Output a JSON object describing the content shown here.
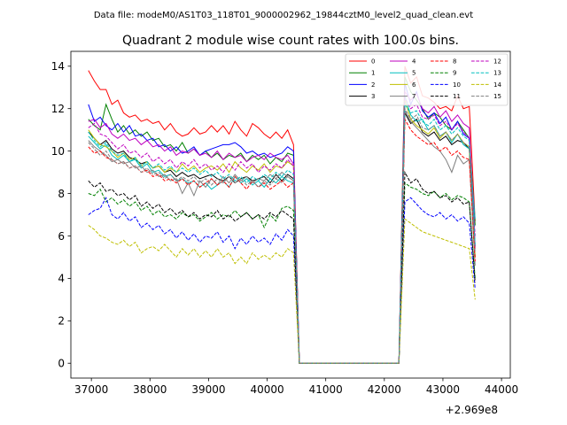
{
  "chart_data": {
    "type": "line",
    "suptitle": "Data file: modeM0/AS1T03_118T01_9000002962_19844cztM0_level2_quad_clean.evt",
    "title": "Quadrant 2 module wise count rates with 100.0s bins.",
    "xlabel": "",
    "ylabel": "",
    "x_offset_label": "+2.969e8",
    "xlim": [
      36650,
      44150
    ],
    "ylim": [
      -0.7,
      14.7
    ],
    "xticks": [
      37000,
      38000,
      39000,
      40000,
      41000,
      42000,
      43000,
      44000
    ],
    "xtick_labels": [
      "37000",
      "38000",
      "39000",
      "40000",
      "41000",
      "42000",
      "43000",
      "44000"
    ],
    "yticks": [
      0,
      2,
      4,
      6,
      8,
      10,
      12,
      14
    ],
    "ytick_labels": [
      "0",
      "2",
      "4",
      "6",
      "8",
      "10",
      "12",
      "14"
    ],
    "x_start": 36950,
    "x_step": 100,
    "legend_position": "top-right",
    "series": [
      {
        "name": "0",
        "color": "#ff0000",
        "dash": "solid",
        "values": [
          13.8,
          13.3,
          12.9,
          12.9,
          12.2,
          12.4,
          11.8,
          11.6,
          11.7,
          11.4,
          11.5,
          11.3,
          11.4,
          11.0,
          11.3,
          10.9,
          10.7,
          10.8,
          11.1,
          10.8,
          10.9,
          11.2,
          10.9,
          11.2,
          10.8,
          11.4,
          11.0,
          10.7,
          11.3,
          11.1,
          10.8,
          10.6,
          10.9,
          10.6,
          11.0,
          10.3,
          0,
          0,
          0,
          0,
          0,
          0,
          0,
          0,
          0,
          0,
          0,
          0,
          0,
          0,
          0,
          0,
          0,
          0,
          14.0,
          13.2,
          13.5,
          12.6,
          12.5,
          12.3,
          12.0,
          12.1,
          11.9,
          12.6,
          12.0,
          12.1,
          6.7
        ]
      },
      {
        "name": "1",
        "color": "#008000",
        "dash": "solid",
        "values": [
          11.5,
          11.2,
          11.0,
          12.2,
          11.5,
          10.9,
          11.2,
          10.8,
          11.0,
          10.7,
          10.9,
          10.5,
          10.6,
          10.2,
          10.3,
          10.0,
          10.4,
          9.9,
          10.1,
          9.8,
          10.0,
          9.7,
          9.9,
          9.6,
          9.8,
          9.7,
          9.9,
          9.5,
          9.8,
          9.6,
          9.8,
          9.4,
          9.7,
          9.5,
          9.9,
          9.8,
          0,
          0,
          0,
          0,
          0,
          0,
          0,
          0,
          0,
          0,
          0,
          0,
          0,
          0,
          0,
          0,
          0,
          0,
          13.5,
          12.8,
          12.4,
          12.0,
          11.5,
          11.8,
          11.6,
          11.2,
          11.0,
          11.4,
          11.0,
          10.6,
          6.5
        ]
      },
      {
        "name": "2",
        "color": "#0000ff",
        "dash": "solid",
        "values": [
          12.2,
          11.4,
          11.6,
          11.2,
          11.0,
          11.3,
          10.9,
          11.2,
          10.7,
          10.8,
          10.5,
          10.6,
          10.2,
          10.3,
          10.0,
          10.2,
          9.9,
          10.0,
          10.2,
          9.8,
          10.0,
          10.1,
          10.2,
          10.3,
          10.3,
          10.4,
          10.2,
          9.9,
          10.0,
          9.8,
          9.9,
          9.7,
          9.8,
          9.9,
          10.2,
          10.0,
          0,
          0,
          0,
          0,
          0,
          0,
          0,
          0,
          0,
          0,
          0,
          0,
          0,
          0,
          0,
          0,
          0,
          0,
          13.2,
          12.2,
          12.8,
          11.9,
          11.6,
          11.8,
          11.3,
          11.6,
          11.0,
          11.4,
          10.8,
          10.6,
          5.5
        ]
      },
      {
        "name": "3",
        "color": "#000000",
        "dash": "solid",
        "values": [
          10.9,
          10.6,
          10.3,
          10.5,
          10.1,
          9.9,
          10.0,
          9.7,
          9.6,
          9.4,
          9.5,
          9.2,
          9.3,
          9.0,
          9.1,
          8.8,
          9.0,
          8.8,
          8.9,
          8.7,
          8.8,
          8.9,
          8.7,
          8.6,
          8.8,
          8.5,
          8.7,
          8.8,
          8.6,
          8.7,
          8.8,
          8.5,
          8.9,
          8.6,
          8.9,
          8.7,
          0,
          0,
          0,
          0,
          0,
          0,
          0,
          0,
          0,
          0,
          0,
          0,
          0,
          0,
          0,
          0,
          0,
          0,
          11.8,
          11.3,
          11.5,
          10.9,
          10.7,
          10.9,
          10.5,
          10.7,
          10.3,
          10.5,
          10.4,
          10.1,
          5.0
        ]
      },
      {
        "name": "4",
        "color": "#bf00bf",
        "dash": "solid",
        "values": [
          11.4,
          11.5,
          11.1,
          11.3,
          10.8,
          10.6,
          10.8,
          10.5,
          10.6,
          10.3,
          10.5,
          10.2,
          10.3,
          10.0,
          10.2,
          9.8,
          10.0,
          9.9,
          10.1,
          9.8,
          9.9,
          9.7,
          10.0,
          9.6,
          9.9,
          9.7,
          9.8,
          9.5,
          9.7,
          9.8,
          9.6,
          9.9,
          9.7,
          9.6,
          9.8,
          9.4,
          0,
          0,
          0,
          0,
          0,
          0,
          0,
          0,
          0,
          0,
          0,
          0,
          0,
          0,
          0,
          0,
          0,
          0,
          12.8,
          12.4,
          12.7,
          12.0,
          11.8,
          12.1,
          11.6,
          11.9,
          11.4,
          11.7,
          11.3,
          11.1,
          5.4
        ]
      },
      {
        "name": "5",
        "color": "#00bfbf",
        "dash": "solid",
        "values": [
          10.7,
          10.4,
          10.1,
          10.3,
          9.8,
          9.6,
          9.8,
          9.5,
          9.6,
          9.2,
          9.4,
          9.0,
          9.1,
          8.8,
          8.9,
          8.6,
          8.7,
          8.5,
          8.6,
          8.3,
          8.5,
          8.2,
          8.4,
          8.6,
          8.3,
          8.8,
          8.5,
          8.7,
          8.4,
          8.6,
          8.3,
          8.7,
          8.5,
          8.8,
          8.6,
          8.5,
          0,
          0,
          0,
          0,
          0,
          0,
          0,
          0,
          0,
          0,
          0,
          0,
          0,
          0,
          0,
          0,
          0,
          0,
          12.6,
          11.7,
          11.4,
          11.5,
          11.0,
          11.2,
          10.7,
          10.9,
          10.4,
          10.8,
          10.3,
          10.1,
          6.8
        ]
      },
      {
        "name": "6",
        "color": "#bfbf00",
        "dash": "solid",
        "values": [
          11.0,
          10.6,
          10.3,
          10.2,
          10.0,
          9.7,
          9.9,
          9.6,
          9.7,
          9.3,
          9.5,
          9.2,
          9.3,
          9.0,
          9.2,
          9.0,
          9.4,
          9.1,
          9.3,
          9.0,
          9.2,
          9.3,
          9.1,
          9.4,
          9.0,
          9.5,
          9.2,
          9.0,
          9.3,
          9.1,
          9.4,
          9.0,
          9.3,
          9.2,
          9.5,
          9.3,
          0,
          0,
          0,
          0,
          0,
          0,
          0,
          0,
          0,
          0,
          0,
          0,
          0,
          0,
          0,
          0,
          0,
          0,
          12.4,
          11.5,
          11.2,
          11.0,
          10.8,
          11.1,
          10.6,
          10.9,
          10.5,
          10.8,
          10.4,
          10.2,
          5.0
        ]
      },
      {
        "name": "7",
        "color": "#7f7f7f",
        "dash": "solid",
        "values": [
          10.5,
          10.2,
          10.0,
          9.8,
          9.5,
          9.6,
          9.4,
          9.5,
          9.2,
          9.3,
          9.0,
          9.1,
          8.8,
          8.9,
          8.6,
          8.7,
          8.0,
          8.5,
          7.9,
          8.6,
          8.3,
          8.7,
          8.4,
          8.8,
          8.5,
          8.9,
          8.6,
          8.8,
          8.5,
          8.7,
          8.6,
          8.9,
          8.7,
          9.0,
          8.8,
          8.6,
          0,
          0,
          0,
          0,
          0,
          0,
          0,
          0,
          0,
          0,
          0,
          0,
          0,
          0,
          0,
          0,
          0,
          0,
          11.9,
          11.4,
          11.1,
          10.8,
          10.5,
          10.2,
          10.0,
          9.6,
          9.0,
          9.8,
          9.4,
          9.6,
          4.6
        ]
      },
      {
        "name": "8",
        "color": "#ff0000",
        "dash": "dashed",
        "values": [
          10.2,
          9.9,
          10.0,
          9.7,
          9.6,
          9.4,
          9.5,
          9.2,
          9.3,
          9.0,
          9.1,
          8.8,
          8.9,
          8.6,
          8.7,
          8.5,
          8.7,
          8.4,
          8.6,
          8.3,
          8.5,
          8.7,
          8.4,
          8.6,
          8.3,
          8.8,
          8.5,
          8.2,
          8.6,
          8.3,
          8.5,
          8.2,
          8.4,
          8.6,
          8.3,
          8.5,
          0,
          0,
          0,
          0,
          0,
          0,
          0,
          0,
          0,
          0,
          0,
          0,
          0,
          0,
          0,
          0,
          0,
          0,
          11.5,
          11.0,
          10.7,
          10.5,
          10.3,
          10.4,
          10.0,
          10.2,
          9.8,
          10.0,
          9.7,
          9.6,
          4.8
        ]
      },
      {
        "name": "9",
        "color": "#008000",
        "dash": "dashed",
        "values": [
          8.0,
          7.9,
          8.2,
          7.6,
          7.8,
          7.5,
          7.7,
          7.4,
          7.6,
          7.2,
          7.4,
          7.0,
          7.2,
          6.9,
          7.0,
          6.8,
          7.1,
          6.9,
          7.0,
          6.7,
          6.9,
          7.1,
          6.8,
          7.0,
          6.9,
          7.2,
          6.9,
          7.1,
          6.8,
          7.0,
          6.4,
          7.0,
          6.7,
          7.3,
          7.4,
          7.2,
          0,
          0,
          0,
          0,
          0,
          0,
          0,
          0,
          0,
          0,
          0,
          0,
          0,
          0,
          0,
          0,
          0,
          0,
          8.5,
          8.3,
          8.2,
          8.0,
          7.9,
          8.1,
          7.8,
          8.0,
          7.7,
          7.9,
          7.8,
          7.6,
          4.0
        ]
      },
      {
        "name": "10",
        "color": "#0000ff",
        "dash": "dashed",
        "values": [
          7.0,
          7.2,
          7.3,
          7.8,
          7.0,
          6.8,
          7.1,
          6.7,
          6.9,
          6.4,
          6.6,
          6.3,
          6.5,
          6.1,
          6.3,
          5.9,
          6.2,
          5.8,
          6.1,
          5.7,
          6.0,
          5.9,
          6.2,
          5.7,
          6.0,
          5.4,
          5.9,
          5.6,
          6.0,
          5.7,
          5.9,
          5.6,
          6.1,
          5.8,
          6.3,
          6.0,
          0,
          0,
          0,
          0,
          0,
          0,
          0,
          0,
          0,
          0,
          0,
          0,
          0,
          0,
          0,
          0,
          0,
          0,
          7.6,
          7.8,
          7.5,
          7.2,
          7.0,
          6.9,
          7.1,
          6.8,
          7.0,
          6.7,
          6.9,
          6.6,
          3.5
        ]
      },
      {
        "name": "11",
        "color": "#000000",
        "dash": "dashed",
        "values": [
          8.6,
          8.3,
          8.5,
          8.1,
          8.2,
          7.9,
          8.0,
          7.7,
          7.9,
          7.4,
          7.6,
          7.3,
          7.5,
          7.1,
          7.3,
          7.0,
          7.2,
          6.9,
          7.1,
          6.8,
          7.0,
          6.9,
          7.2,
          6.8,
          7.0,
          6.7,
          6.9,
          7.1,
          6.8,
          7.0,
          6.8,
          7.1,
          6.9,
          7.2,
          7.0,
          6.8,
          0,
          0,
          0,
          0,
          0,
          0,
          0,
          0,
          0,
          0,
          0,
          0,
          0,
          0,
          0,
          0,
          0,
          0,
          9.0,
          8.5,
          8.7,
          8.2,
          8.0,
          8.1,
          7.8,
          7.9,
          7.6,
          7.8,
          7.5,
          7.6,
          3.8
        ]
      },
      {
        "name": "12",
        "color": "#bf00bf",
        "dash": "dashed",
        "values": [
          11.1,
          11.3,
          10.8,
          10.7,
          10.4,
          10.1,
          10.3,
          9.9,
          10.0,
          9.7,
          9.9,
          9.5,
          9.7,
          9.4,
          9.6,
          9.2,
          9.5,
          9.3,
          9.6,
          9.2,
          9.4,
          9.1,
          9.3,
          9.0,
          9.4,
          9.1,
          9.5,
          9.2,
          9.4,
          9.0,
          9.3,
          9.1,
          9.4,
          9.2,
          9.6,
          9.3,
          0,
          0,
          0,
          0,
          0,
          0,
          0,
          0,
          0,
          0,
          0,
          0,
          0,
          0,
          0,
          0,
          0,
          0,
          12.5,
          12.0,
          12.2,
          11.6,
          11.5,
          11.7,
          11.2,
          11.4,
          11.0,
          11.3,
          10.9,
          10.6,
          6.0
        ]
      },
      {
        "name": "13",
        "color": "#00bfbf",
        "dash": "dashed",
        "values": [
          10.9,
          10.5,
          10.2,
          10.4,
          10.0,
          9.8,
          9.9,
          9.5,
          9.7,
          9.3,
          9.5,
          9.2,
          9.4,
          9.1,
          9.3,
          9.0,
          9.2,
          9.0,
          9.2,
          8.9,
          9.1,
          8.8,
          9.0,
          8.7,
          8.9,
          8.6,
          8.8,
          8.5,
          8.8,
          8.6,
          8.9,
          8.7,
          9.0,
          8.8,
          9.1,
          8.9,
          0,
          0,
          0,
          0,
          0,
          0,
          0,
          0,
          0,
          0,
          0,
          0,
          0,
          0,
          0,
          0,
          0,
          0,
          12.2,
          11.8,
          11.9,
          11.4,
          11.2,
          11.5,
          11.0,
          11.2,
          10.8,
          11.1,
          10.7,
          10.5,
          5.6
        ]
      },
      {
        "name": "14",
        "color": "#bfbf00",
        "dash": "dashed",
        "values": [
          6.5,
          6.3,
          6.0,
          5.9,
          5.7,
          5.6,
          5.8,
          5.5,
          5.7,
          5.2,
          5.4,
          5.5,
          5.3,
          5.6,
          5.3,
          5.0,
          5.4,
          5.1,
          5.4,
          5.0,
          5.3,
          5.0,
          5.4,
          5.0,
          5.2,
          4.7,
          5.0,
          4.7,
          5.2,
          4.9,
          5.1,
          4.9,
          5.2,
          5.0,
          5.4,
          5.2,
          0,
          0,
          0,
          0,
          0,
          0,
          0,
          0,
          0,
          0,
          0,
          0,
          0,
          0,
          0,
          0,
          0,
          0,
          6.8,
          6.6,
          6.4,
          6.2,
          6.1,
          6.0,
          5.9,
          5.8,
          5.7,
          5.6,
          5.5,
          5.4,
          3.0
        ]
      },
      {
        "name": "15",
        "color": "#7f7f7f",
        "dash": "dashed",
        "values": [
          10.4,
          10.1,
          9.8,
          10.0,
          9.6,
          9.4,
          9.5,
          9.2,
          9.3,
          9.0,
          9.2,
          8.9,
          9.0,
          8.7,
          8.9,
          8.6,
          8.8,
          8.6,
          8.8,
          8.5,
          8.7,
          8.4,
          8.7,
          8.5,
          8.8,
          8.5,
          8.7,
          8.4,
          8.6,
          8.3,
          8.6,
          8.4,
          8.7,
          8.5,
          8.8,
          8.6,
          0,
          0,
          0,
          0,
          0,
          0,
          0,
          0,
          0,
          0,
          0,
          0,
          0,
          0,
          0,
          0,
          0,
          0,
          12.0,
          11.5,
          11.7,
          11.1,
          11.0,
          11.2,
          10.7,
          10.9,
          10.5,
          10.8,
          10.4,
          10.2,
          5.2
        ]
      }
    ]
  }
}
